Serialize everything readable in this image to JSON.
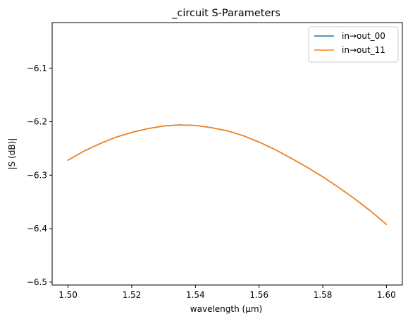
{
  "chart_data": {
    "type": "line",
    "title": "_circuit S-Parameters",
    "xlabel": "wavelength (µm)",
    "ylabel": "|S (dB)|",
    "xlim": [
      1.495,
      1.605
    ],
    "ylim": [
      -6.5055,
      -6.0145
    ],
    "xticks": [
      1.5,
      1.52,
      1.54,
      1.56,
      1.58,
      1.6
    ],
    "xtick_labels": [
      "1.50",
      "1.52",
      "1.54",
      "1.56",
      "1.58",
      "1.60"
    ],
    "yticks": [
      -6.5,
      -6.4,
      -6.3,
      -6.2,
      -6.1
    ],
    "ytick_labels": [
      "−6.5",
      "−6.4",
      "−6.3",
      "−6.2",
      "−6.1"
    ],
    "grid": false,
    "legend_position": "top-right",
    "x": [
      1.5,
      1.505,
      1.51,
      1.515,
      1.52,
      1.525,
      1.53,
      1.535,
      1.54,
      1.545,
      1.55,
      1.555,
      1.56,
      1.565,
      1.57,
      1.575,
      1.58,
      1.585,
      1.59,
      1.595,
      1.6
    ],
    "series": [
      {
        "name": "in→out_00",
        "color": "#1f77b4",
        "values": [
          -6.272,
          -6.255,
          -6.241,
          -6.229,
          -6.22,
          -6.213,
          -6.208,
          -6.206,
          -6.207,
          -6.211,
          -6.217,
          -6.226,
          -6.238,
          -6.252,
          -6.268,
          -6.285,
          -6.303,
          -6.323,
          -6.344,
          -6.367,
          -6.392
        ]
      },
      {
        "name": "in→out_11",
        "color": "#ff7f0e",
        "values": [
          -6.272,
          -6.255,
          -6.241,
          -6.229,
          -6.22,
          -6.213,
          -6.208,
          -6.206,
          -6.207,
          -6.211,
          -6.217,
          -6.226,
          -6.238,
          -6.252,
          -6.268,
          -6.285,
          -6.303,
          -6.323,
          -6.344,
          -6.367,
          -6.392
        ]
      }
    ]
  }
}
